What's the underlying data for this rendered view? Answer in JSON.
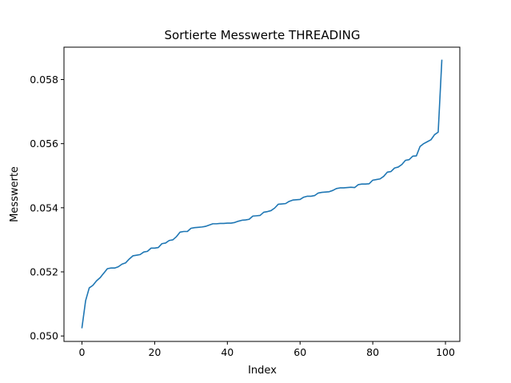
{
  "chart_data": {
    "type": "line",
    "title": "Sortierte Messwerte THREADING",
    "xlabel": "Index",
    "ylabel": "Messwerte",
    "xlim": [
      -4.95,
      103.95
    ],
    "ylim": [
      0.04983,
      0.05901
    ],
    "x_ticks": [
      0,
      20,
      40,
      60,
      80,
      100
    ],
    "x_tick_labels": [
      "0",
      "20",
      "40",
      "60",
      "80",
      "100"
    ],
    "y_ticks": [
      0.05,
      0.052,
      0.054,
      0.056,
      0.058
    ],
    "y_tick_labels": [
      "0.050",
      "0.052",
      "0.054",
      "0.056",
      "0.058"
    ],
    "grid": false,
    "line_color": "#1f77b4",
    "series": [
      {
        "x": [
          0,
          1,
          2,
          3,
          4,
          5,
          6,
          7,
          8,
          9,
          10,
          11,
          12,
          13,
          14,
          15,
          16,
          17,
          18,
          19,
          20,
          21,
          22,
          23,
          24,
          25,
          26,
          27,
          28,
          29,
          30,
          31,
          32,
          33,
          34,
          35,
          36,
          37,
          38,
          39,
          40,
          41,
          42,
          43,
          44,
          45,
          46,
          47,
          48,
          49,
          50,
          51,
          52,
          53,
          54,
          55,
          56,
          57,
          58,
          59,
          60,
          61,
          62,
          63,
          64,
          65,
          66,
          67,
          68,
          69,
          70,
          71,
          72,
          73,
          74,
          75,
          76,
          77,
          78,
          79,
          80,
          81,
          82,
          83,
          84,
          85,
          86,
          87,
          88,
          89,
          90,
          91,
          92,
          93,
          94,
          95,
          96,
          97,
          98,
          99
        ],
        "values": [
          0.05026,
          0.0511,
          0.0515,
          0.05158,
          0.05172,
          0.05182,
          0.05196,
          0.0521,
          0.05212,
          0.05212,
          0.05216,
          0.05224,
          0.05228,
          0.0524,
          0.0525,
          0.05252,
          0.05254,
          0.05262,
          0.05264,
          0.05274,
          0.05274,
          0.05276,
          0.05288,
          0.0529,
          0.05298,
          0.053,
          0.0531,
          0.05324,
          0.05326,
          0.05326,
          0.05336,
          0.05338,
          0.05339,
          0.0534,
          0.05342,
          0.05346,
          0.0535,
          0.0535,
          0.05351,
          0.05351,
          0.05352,
          0.05352,
          0.05354,
          0.05358,
          0.05361,
          0.05362,
          0.05364,
          0.05374,
          0.05375,
          0.05376,
          0.05386,
          0.05388,
          0.05391,
          0.05399,
          0.05411,
          0.05412,
          0.05413,
          0.0542,
          0.05424,
          0.05425,
          0.05426,
          0.05433,
          0.05436,
          0.05436,
          0.05438,
          0.05446,
          0.05448,
          0.05449,
          0.0545,
          0.05454,
          0.0546,
          0.05462,
          0.05462,
          0.05463,
          0.05464,
          0.05463,
          0.05472,
          0.05474,
          0.05474,
          0.05475,
          0.05486,
          0.05488,
          0.0549,
          0.05498,
          0.05511,
          0.05513,
          0.05524,
          0.05527,
          0.05535,
          0.05548,
          0.0555,
          0.05561,
          0.05562,
          0.05591,
          0.056,
          0.05606,
          0.05612,
          0.05628,
          0.05636,
          0.0586
        ]
      }
    ]
  }
}
